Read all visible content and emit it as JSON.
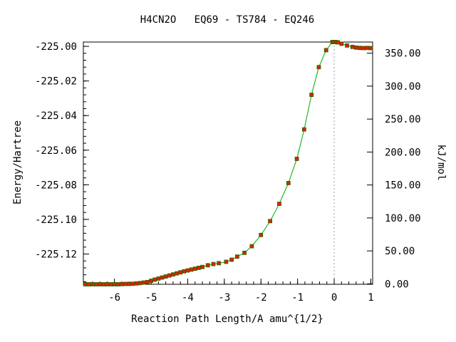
{
  "chart_data": {
    "type": "line",
    "title": "H4CN2O   EQ69 - TS784 - EQ246",
    "xlabel": "Reaction Path Length/A amu^{1/2}",
    "ylabel": "Energy/Hartree",
    "y2label": "kJ/mol",
    "xlim": [
      -6.85,
      1.05
    ],
    "ylim": [
      -225.1375,
      -224.9975
    ],
    "y2lim": [
      -0.68,
      366.9
    ],
    "xticks": [
      -6,
      -5,
      -4,
      -3,
      -2,
      -1,
      0,
      1
    ],
    "yticks": [
      -225.12,
      -225.1,
      -225.08,
      -225.06,
      -225.04,
      -225.02,
      -225.0
    ],
    "ytick_labels": [
      "-225.12",
      "-225.10",
      "-225.08",
      "-225.06",
      "-225.04",
      "-225.02",
      "-225.00"
    ],
    "y2ticks": [
      0,
      50,
      100,
      150,
      200,
      250,
      300,
      350
    ],
    "y2tick_labels": [
      "0.00",
      "50.00",
      "100.00",
      "150.00",
      "200.00",
      "250.00",
      "300.00",
      "350.00"
    ],
    "ts_marker_x": 0,
    "grid": false,
    "colors": {
      "line": "#00aa00",
      "marker": "#dd2200",
      "marker_edge": "#226600",
      "ts_line": "#999999"
    },
    "series": [
      {
        "x": [
          -6.8,
          -6.7,
          -6.6,
          -6.5,
          -6.4,
          -6.3,
          -6.2,
          -6.1,
          -6.0,
          -5.9,
          -5.8,
          -5.7,
          -5.6,
          -5.5,
          -5.4,
          -5.3,
          -5.2,
          -5.1,
          -5.0,
          -4.9,
          -4.8,
          -4.7,
          -4.6,
          -4.5,
          -4.4,
          -4.3,
          -4.2,
          -4.1,
          -4.0,
          -3.9,
          -3.8,
          -3.7,
          -3.6,
          -3.45,
          -3.3,
          -3.15,
          -2.95,
          -2.8,
          -2.65,
          -2.45,
          -2.25,
          -2.0,
          -1.75,
          -1.5,
          -1.25,
          -1.02,
          -0.82,
          -0.62,
          -0.42,
          -0.22,
          -0.05,
          0.0,
          0.05,
          0.1,
          0.2,
          0.35,
          0.5,
          0.6,
          0.7,
          0.8,
          0.9,
          1.0
        ],
        "y": [
          -225.1375,
          -225.1375,
          -225.1375,
          -225.1375,
          -225.1375,
          -225.1375,
          -225.1375,
          -225.1375,
          -225.1375,
          -225.1375,
          -225.1374,
          -225.1373,
          -225.1373,
          -225.1372,
          -225.137,
          -225.1368,
          -225.1365,
          -225.1362,
          -225.1355,
          -225.1348,
          -225.1342,
          -225.1336,
          -225.133,
          -225.1324,
          -225.1318,
          -225.1312,
          -225.1306,
          -225.13,
          -225.1295,
          -225.129,
          -225.1285,
          -225.128,
          -225.1275,
          -225.1265,
          -225.1258,
          -225.1253,
          -225.1245,
          -225.1233,
          -225.1215,
          -225.1193,
          -225.1155,
          -225.109,
          -225.101,
          -225.091,
          -225.079,
          -225.065,
          -225.048,
          -225.028,
          -225.012,
          -225.0022,
          -224.9975,
          -224.9975,
          -224.9975,
          -224.9977,
          -224.9985,
          -224.9995,
          -225.0003,
          -225.0007,
          -225.0009,
          -225.001,
          -225.0009,
          -225.001
        ]
      }
    ]
  }
}
